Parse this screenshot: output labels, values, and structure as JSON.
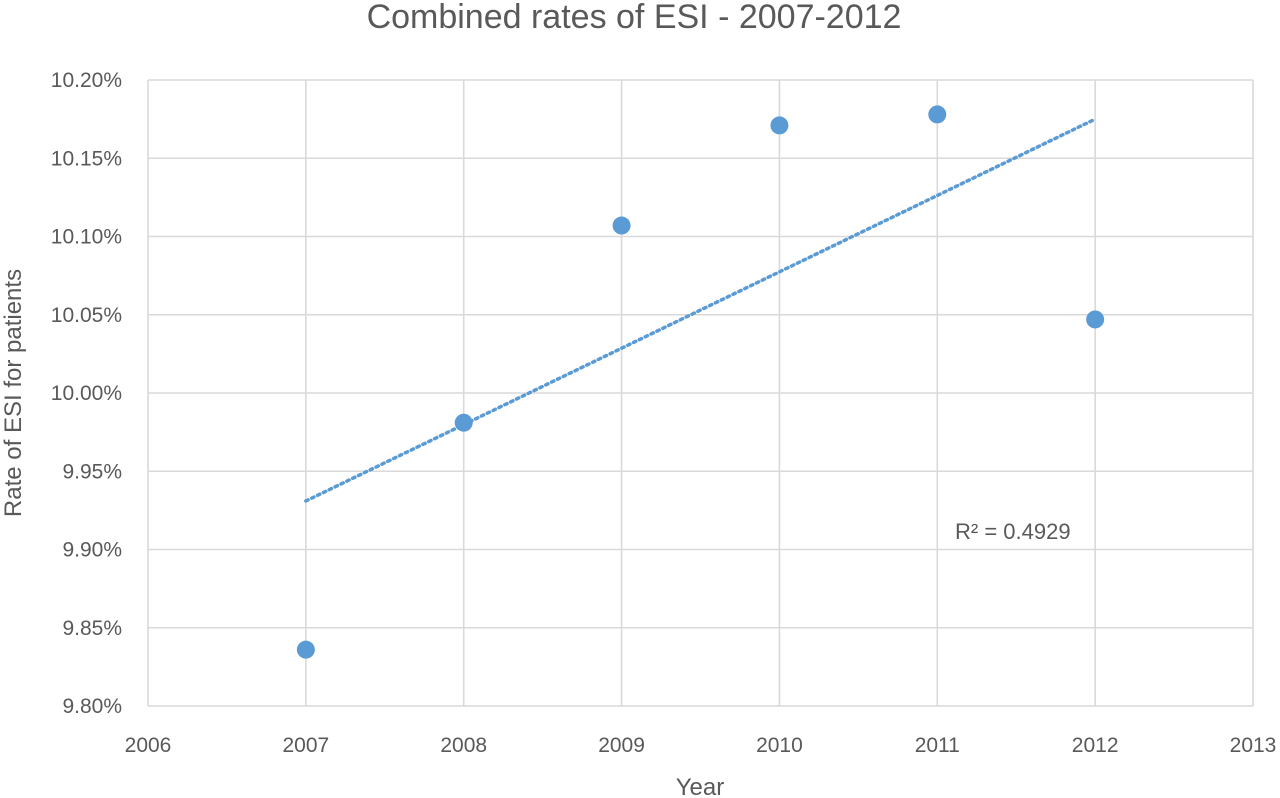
{
  "chart_data": {
    "type": "scatter",
    "title": "Combined rates of ESI - 2007-2012",
    "xlabel": "Year",
    "ylabel": "Rate of ESI for patients",
    "xlim": [
      2006,
      2013
    ],
    "ylim": [
      9.8,
      10.2
    ],
    "x_ticks": [
      2006,
      2007,
      2008,
      2009,
      2010,
      2011,
      2012,
      2013
    ],
    "y_ticks": [
      9.8,
      9.85,
      9.9,
      9.95,
      10.0,
      10.05,
      10.1,
      10.15,
      10.2
    ],
    "y_tick_labels": [
      "9.80%",
      "9.85%",
      "9.90%",
      "9.95%",
      "10.00%",
      "10.05%",
      "10.10%",
      "10.15%",
      "10.20%"
    ],
    "grid": true,
    "x": [
      2007,
      2008,
      2009,
      2010,
      2011,
      2012
    ],
    "y": [
      9.836,
      9.981,
      10.107,
      10.171,
      10.178,
      10.047
    ],
    "trendline": {
      "type": "linear",
      "x": [
        2007,
        2012
      ],
      "y": [
        9.931,
        10.175
      ],
      "r_squared_label": "R² = 0.4929"
    },
    "colors": {
      "point": "#5b9bd5",
      "trend": "#5b9bd5",
      "grid": "#d9d9d9",
      "text": "#595959"
    }
  }
}
